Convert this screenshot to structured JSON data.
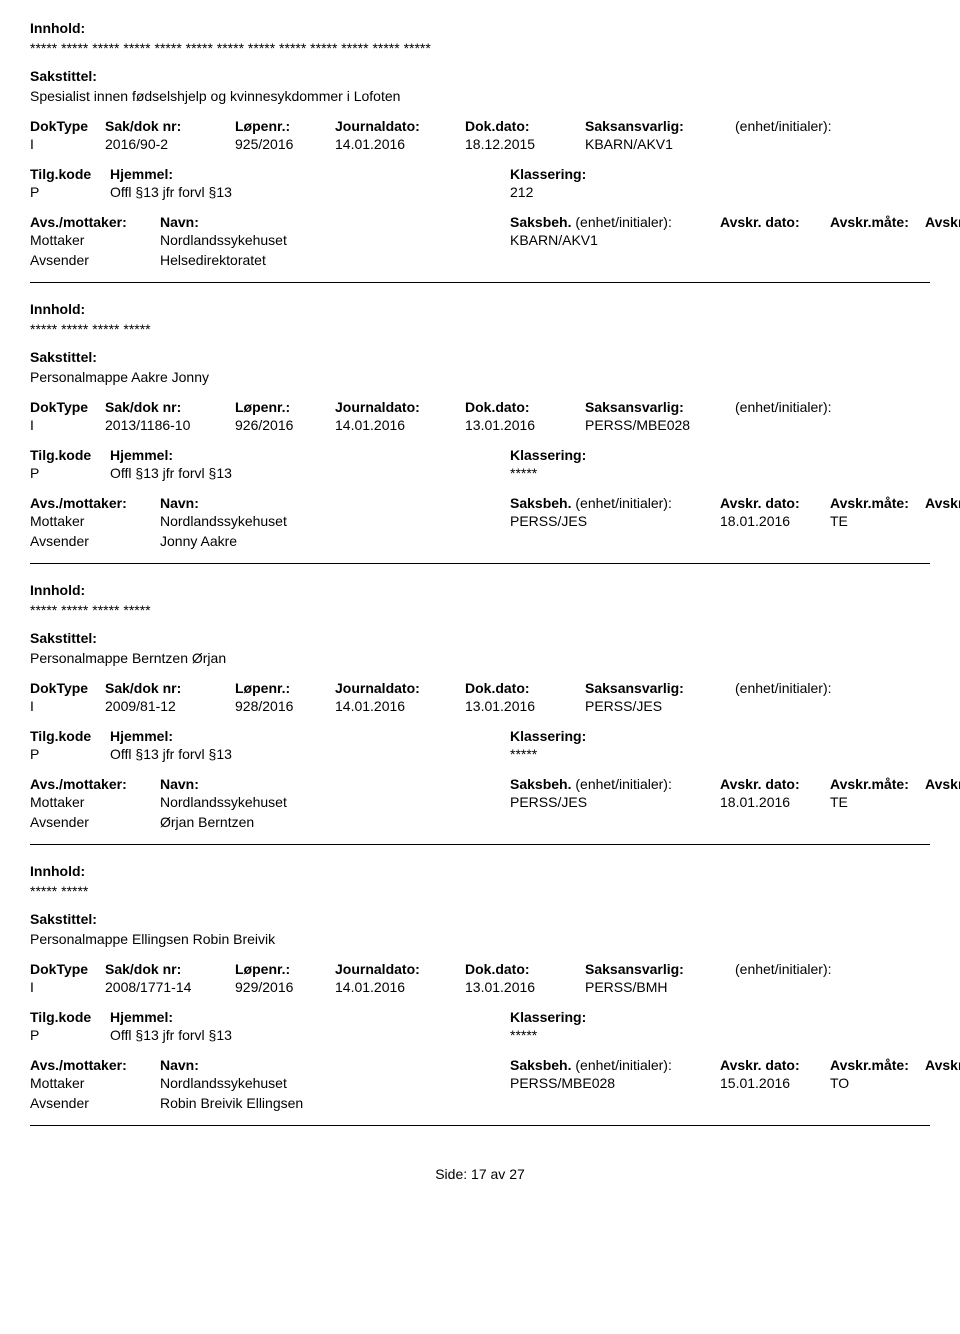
{
  "labels": {
    "innhold": "Innhold:",
    "sakstittel": "Sakstittel:",
    "doktype": "DokType",
    "sakdok": "Sak/dok nr:",
    "lopenr": "Løpenr.:",
    "journaldato": "Journaldato:",
    "dokdato": "Dok.dato:",
    "saksansvarlig": "Saksansvarlig:",
    "enhet": "(enhet/initialer):",
    "tilgkode": "Tilg.kode",
    "hjemmel": "Hjemmel:",
    "klassering": "Klassering:",
    "avsmottaker": "Avs./mottaker:",
    "navn": "Navn:",
    "saksbeh": "Saksbeh.",
    "saksbeh_enhet": "(enhet/initialer):",
    "avskrdato": "Avskr. dato:",
    "avskrmate": "Avskr.måte:",
    "avskrivlnr": "Avskriv lnr.:",
    "mottaker": "Mottaker",
    "avsender": "Avsender"
  },
  "records": [
    {
      "innhold": "***** ***** ***** ***** ***** ***** ***** ***** ***** ***** ***** ***** *****",
      "sakstittel": "Spesialist innen fødselshjelp og kvinnesykdommer i Lofoten",
      "doktype": "I",
      "sakdok": "2016/90-2",
      "lopenr": "925/2016",
      "journaldato": "14.01.2016",
      "dokdato": "18.12.2015",
      "saksansvarlig": "KBARN/AKV1",
      "tilgkode": "P",
      "hjemmel": "Offl §13 jfr forvl §13",
      "klassering": "212",
      "mottaker_navn": "Nordlandssykehuset",
      "saksbeh": "KBARN/AKV1",
      "avskrdato": "",
      "avskrmate": "",
      "avsender_navn": "Helsedirektoratet"
    },
    {
      "innhold": "***** ***** ***** *****",
      "sakstittel": "Personalmappe Aakre Jonny",
      "doktype": "I",
      "sakdok": "2013/1186-10",
      "lopenr": "926/2016",
      "journaldato": "14.01.2016",
      "dokdato": "13.01.2016",
      "saksansvarlig": "PERSS/MBE028",
      "tilgkode": "P",
      "hjemmel": "Offl §13 jfr forvl §13",
      "klassering": "*****",
      "mottaker_navn": "Nordlandssykehuset",
      "saksbeh": "PERSS/JES",
      "avskrdato": "18.01.2016",
      "avskrmate": "TE",
      "avsender_navn": "Jonny Aakre"
    },
    {
      "innhold": "***** ***** ***** *****",
      "sakstittel": "Personalmappe Berntzen Ørjan",
      "doktype": "I",
      "sakdok": "2009/81-12",
      "lopenr": "928/2016",
      "journaldato": "14.01.2016",
      "dokdato": "13.01.2016",
      "saksansvarlig": "PERSS/JES",
      "tilgkode": "P",
      "hjemmel": "Offl §13 jfr forvl §13",
      "klassering": "*****",
      "mottaker_navn": "Nordlandssykehuset",
      "saksbeh": "PERSS/JES",
      "avskrdato": "18.01.2016",
      "avskrmate": "TE",
      "avsender_navn": "Ørjan Berntzen"
    },
    {
      "innhold": "***** *****",
      "sakstittel": "Personalmappe Ellingsen Robin Breivik",
      "doktype": "I",
      "sakdok": "2008/1771-14",
      "lopenr": "929/2016",
      "journaldato": "14.01.2016",
      "dokdato": "13.01.2016",
      "saksansvarlig": "PERSS/BMH",
      "tilgkode": "P",
      "hjemmel": "Offl §13 jfr forvl §13",
      "klassering": "*****",
      "mottaker_navn": "Nordlandssykehuset",
      "saksbeh": "PERSS/MBE028",
      "avskrdato": "15.01.2016",
      "avskrmate": "TO",
      "avsender_navn": "Robin Breivik Ellingsen"
    }
  ],
  "footer": {
    "side": "Side:",
    "page": "17",
    "av": "av",
    "total": "27"
  }
}
